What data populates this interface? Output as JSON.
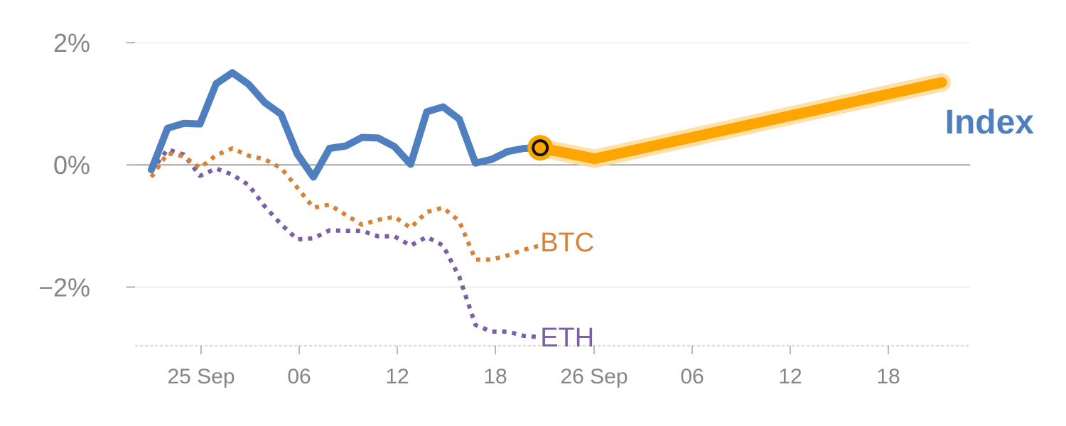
{
  "chart_data": {
    "type": "line",
    "title": "",
    "xlabel": "",
    "ylabel": "",
    "ylim": [
      -2.95,
      2.2
    ],
    "grid": true,
    "y_ticks": [
      {
        "value": 2,
        "label": "2%"
      },
      {
        "value": 0,
        "label": "0%"
      },
      {
        "value": -2,
        "label": "−2%"
      }
    ],
    "x_ticks": [
      "25 Sep",
      "06",
      "12",
      "18",
      "26 Sep",
      "06",
      "12",
      "18"
    ],
    "colors": {
      "index": "#4f7fbf",
      "btc": "#d98236",
      "eth": "#7a5ea7",
      "projection": "#ffa500",
      "projection_halo": "#ffdb99",
      "zero_line": "#888888",
      "grid": "#e8e8e8",
      "axis_labels": "#858585"
    },
    "series": [
      {
        "name": "Index",
        "style": "solid",
        "values": [
          -0.08,
          0.6,
          0.68,
          0.67,
          1.33,
          1.51,
          1.32,
          1.02,
          0.83,
          0.18,
          -0.2,
          0.27,
          0.31,
          0.45,
          0.44,
          0.3,
          0.01,
          0.87,
          0.95,
          0.75,
          0.03,
          0.09,
          0.22,
          0.27,
          0.28
        ]
      },
      {
        "name": "BTC",
        "style": "dotted",
        "values": [
          -0.2,
          0.19,
          0.14,
          -0.05,
          0.16,
          0.27,
          0.15,
          0.09,
          -0.05,
          -0.37,
          -0.7,
          -0.65,
          -0.82,
          -0.98,
          -0.9,
          -0.85,
          -1.03,
          -0.77,
          -0.7,
          -0.92,
          -1.55,
          -1.55,
          -1.48,
          -1.39,
          -1.32
        ]
      },
      {
        "name": "ETH",
        "style": "dotted",
        "values": [
          -0.1,
          0.25,
          0.17,
          -0.18,
          -0.06,
          -0.16,
          -0.33,
          -0.68,
          -0.97,
          -1.22,
          -1.2,
          -1.07,
          -1.08,
          -1.08,
          -1.17,
          -1.17,
          -1.32,
          -1.18,
          -1.32,
          -1.83,
          -2.62,
          -2.73,
          -2.73,
          -2.8,
          -2.82
        ]
      }
    ],
    "projection": {
      "values": [
        0.28,
        0.1,
        1.35
      ],
      "end_label": "Index"
    }
  }
}
